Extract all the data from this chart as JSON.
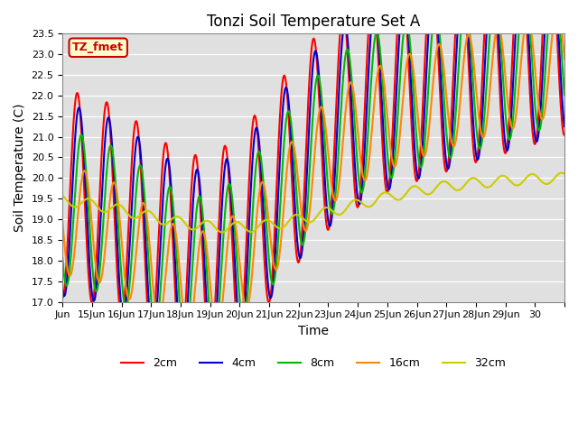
{
  "title": "Tonzi Soil Temperature Set A",
  "xlabel": "Time",
  "ylabel": "Soil Temperature (C)",
  "ylim": [
    17.0,
    23.5
  ],
  "yticks": [
    17.0,
    17.5,
    18.0,
    18.5,
    19.0,
    19.5,
    20.0,
    20.5,
    21.0,
    21.5,
    22.0,
    22.5,
    23.0,
    23.5
  ],
  "background_color": "#e0e0e0",
  "annotation_text": "TZ_fmet",
  "annotation_bg": "#ffffcc",
  "annotation_border": "#cc0000",
  "colors": {
    "2cm": "#ff0000",
    "4cm": "#0000cc",
    "8cm": "#00bb00",
    "16cm": "#ff8800",
    "32cm": "#cccc00"
  },
  "line_width": 1.5,
  "num_days": 17,
  "tick_positions": [
    0,
    1,
    2,
    3,
    4,
    5,
    6,
    7,
    8,
    9,
    10,
    11,
    12,
    13,
    14,
    15,
    16,
    17
  ],
  "tick_labels": [
    "Jun",
    "15Jun",
    "16Jun",
    "17Jun",
    "18Jun",
    "19Jun",
    "20Jun",
    "21Jun",
    "22Jun",
    "23Jun",
    "24Jun",
    "25Jun",
    "26Jun",
    "27Jun",
    "28Jun",
    "29Jun",
    "30",
    ""
  ]
}
